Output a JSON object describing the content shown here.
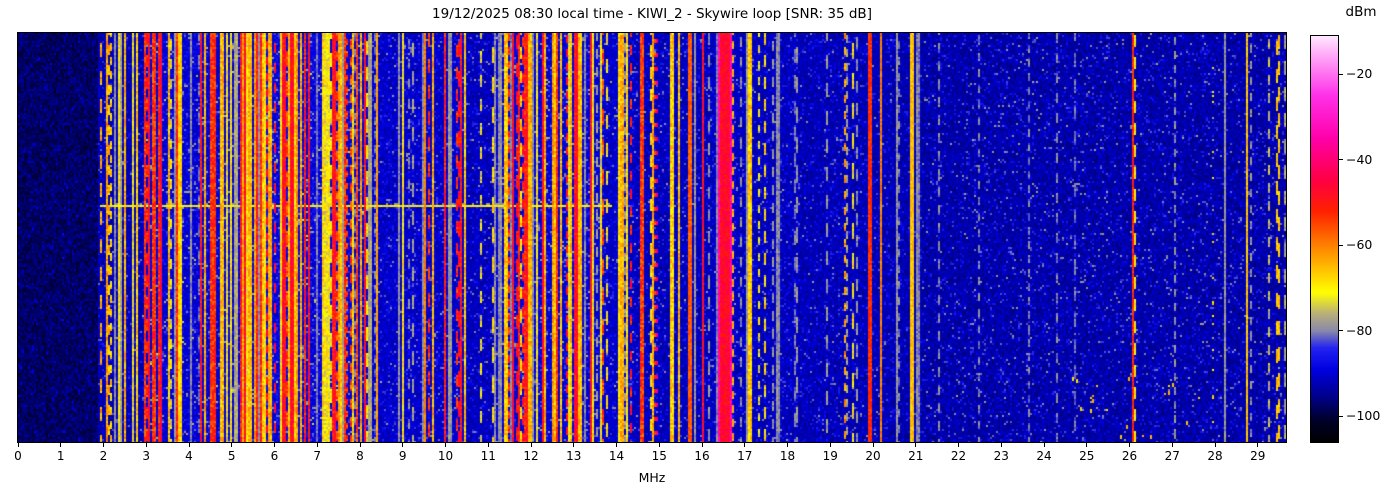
{
  "chart_data": {
    "type": "heatmap",
    "subtype": "rf-spectrogram-waterfall",
    "title": "19/12/2025 08:30 local time - KIWI_2 - Skywire loop [SNR: 35 dB]",
    "x_axis": {
      "label": "MHz",
      "min": 0,
      "max": 29.66,
      "ticks": [
        0,
        1,
        2,
        3,
        4,
        5,
        6,
        7,
        8,
        9,
        10,
        11,
        12,
        13,
        14,
        15,
        16,
        17,
        18,
        19,
        20,
        21,
        22,
        23,
        24,
        25,
        26,
        27,
        28,
        29
      ]
    },
    "y_axis": {
      "label": "",
      "ticks": []
    },
    "colorbar": {
      "label": "dBm",
      "ticks": [
        -20,
        -40,
        -60,
        -80,
        -100
      ],
      "range": [
        -106,
        -11
      ],
      "stops": [
        [
          -106,
          "#000000"
        ],
        [
          -101,
          "#000028"
        ],
        [
          -95,
          "#000090"
        ],
        [
          -89,
          "#0000e0"
        ],
        [
          -84,
          "#2222f0"
        ],
        [
          -80,
          "#8888aa"
        ],
        [
          -76,
          "#b8ae7a"
        ],
        [
          -71,
          "#ffff00"
        ],
        [
          -60,
          "#ff8000"
        ],
        [
          -52,
          "#ff2000"
        ],
        [
          -45,
          "#ff0040"
        ],
        [
          -35,
          "#ff00a8"
        ],
        [
          -25,
          "#ff30e8"
        ],
        [
          -15,
          "#ffb0f8"
        ],
        [
          -11,
          "#ffe8ff"
        ]
      ]
    },
    "bands": [
      {
        "from": 0.0,
        "to": 1.85,
        "floor": -98.0,
        "red": 0.0,
        "yel": 0.004,
        "gray": 0.012,
        "dash": 0.4,
        "tail": 8
      },
      {
        "from": 1.85,
        "to": 2.95,
        "floor": -92.5,
        "red": 0.05,
        "yel": 0.3,
        "gray": 0.12,
        "dash": 0.3,
        "tail": 12
      },
      {
        "from": 2.95,
        "to": 3.95,
        "floor": -90.0,
        "red": 0.32,
        "yel": 0.28,
        "gray": 0.1,
        "dash": 0.15,
        "tail": 14
      },
      {
        "from": 3.95,
        "to": 4.65,
        "floor": -90.0,
        "red": 0.24,
        "yel": 0.26,
        "gray": 0.12,
        "dash": 0.2,
        "tail": 14
      },
      {
        "from": 4.65,
        "to": 5.65,
        "floor": -90.0,
        "red": 0.3,
        "yel": 0.28,
        "gray": 0.1,
        "dash": 0.15,
        "tail": 14
      },
      {
        "from": 5.65,
        "to": 7.65,
        "floor": -89.0,
        "red": 0.33,
        "yel": 0.38,
        "gray": 0.08,
        "dash": 0.12,
        "tail": 14
      },
      {
        "from": 7.65,
        "to": 8.15,
        "floor": -90.0,
        "red": 0.28,
        "yel": 0.26,
        "gray": 0.1,
        "dash": 0.2,
        "tail": 14
      },
      {
        "from": 8.15,
        "to": 9.35,
        "floor": -91.0,
        "red": 0.02,
        "yel": 0.1,
        "gray": 0.1,
        "dash": 0.5,
        "tail": 12
      },
      {
        "from": 9.35,
        "to": 10.5,
        "floor": -91.0,
        "red": 0.1,
        "yel": 0.26,
        "gray": 0.1,
        "dash": 0.3,
        "tail": 12
      },
      {
        "from": 10.5,
        "to": 11.15,
        "floor": -92.0,
        "red": 0.03,
        "yel": 0.08,
        "gray": 0.1,
        "dash": 0.5,
        "tail": 12
      },
      {
        "from": 11.15,
        "to": 13.65,
        "floor": -90.0,
        "red": 0.27,
        "yel": 0.31,
        "gray": 0.09,
        "dash": 0.2,
        "tail": 14
      },
      {
        "from": 13.65,
        "to": 14.45,
        "floor": -91.0,
        "red": 0.12,
        "yel": 0.2,
        "gray": 0.12,
        "dash": 0.4,
        "tail": 12
      },
      {
        "from": 14.45,
        "to": 15.55,
        "floor": -92.0,
        "red": 0.02,
        "yel": 0.08,
        "gray": 0.12,
        "dash": 0.5,
        "tail": 12
      },
      {
        "from": 15.55,
        "to": 16.3,
        "floor": -92.0,
        "red": 0.015,
        "yel": 0.05,
        "gray": 0.08,
        "dash": 0.5,
        "tail": 12
      },
      {
        "from": 16.3,
        "to": 16.8,
        "floor": -91.0,
        "red": 0.04,
        "yel": 0.08,
        "gray": 0.08,
        "dash": 0.3,
        "tail": 12
      },
      {
        "from": 16.8,
        "to": 18.25,
        "floor": -92.0,
        "red": 0.008,
        "yel": 0.07,
        "gray": 0.15,
        "dash": 0.65,
        "tail": 12
      },
      {
        "from": 18.25,
        "to": 19.35,
        "floor": -92.5,
        "red": 0.008,
        "yel": 0.08,
        "gray": 0.1,
        "dash": 0.6,
        "tail": 12
      },
      {
        "from": 19.35,
        "to": 20.45,
        "floor": -92.5,
        "red": 0.012,
        "yel": 0.06,
        "gray": 0.12,
        "dash": 0.6,
        "tail": 12
      },
      {
        "from": 20.45,
        "to": 21.15,
        "floor": -93.0,
        "red": 0.0,
        "yel": 0.02,
        "gray": 0.05,
        "dash": 0.6,
        "tail": 10
      },
      {
        "from": 21.15,
        "to": 26.0,
        "floor": -93.5,
        "red": 0.0,
        "yel": 0.006,
        "gray": 0.025,
        "dash": 0.7,
        "tail": 14
      },
      {
        "from": 26.0,
        "to": 28.7,
        "floor": -93.5,
        "red": 0.0,
        "yel": 0.01,
        "gray": 0.03,
        "dash": 0.7,
        "tail": 14
      },
      {
        "from": 28.7,
        "to": 29.67,
        "floor": -93.5,
        "red": 0.0,
        "yel": 0.02,
        "gray": 0.08,
        "dash": 0.7,
        "tail": 14
      }
    ],
    "signals": [
      {
        "f": 8.4,
        "w": 0.03,
        "level": -63,
        "style": "solid"
      },
      {
        "f": 9.52,
        "w": 0.035,
        "level": -60,
        "style": "solid"
      },
      {
        "f": 14.92,
        "w": 0.03,
        "level": -54,
        "style": "dotted"
      },
      {
        "f": 15.72,
        "w": 0.035,
        "level": -57,
        "style": "solid"
      },
      {
        "f": 16.52,
        "w": 0.16,
        "level": -47,
        "style": "solid"
      },
      {
        "f": 16.72,
        "w": 0.03,
        "level": -64,
        "style": "dashed"
      },
      {
        "f": 19.93,
        "w": 0.028,
        "level": -66,
        "style": "solid"
      },
      {
        "f": 20.18,
        "w": 0.025,
        "level": -60,
        "style": "solid"
      },
      {
        "f": 20.91,
        "w": 0.038,
        "level": -66,
        "style": "solid"
      },
      {
        "f": 26.07,
        "w": 0.032,
        "level": -52,
        "style": "solid"
      },
      {
        "f": 26.13,
        "w": 0.022,
        "level": -70,
        "style": "dashed"
      },
      {
        "f": 27.95,
        "w": 0.025,
        "level": -68,
        "style": "sparse"
      },
      {
        "f": 28.73,
        "w": 0.022,
        "level": -79,
        "style": "solid"
      },
      {
        "f": 29.25,
        "w": 0.028,
        "level": -76,
        "style": "dashed"
      },
      {
        "f": 29.47,
        "w": 0.028,
        "level": -79,
        "style": "dashed"
      }
    ],
    "events": {
      "broadband_streak": {
        "from": 1.9,
        "to": 13.9,
        "row_frac": 0.42,
        "level": -71
      }
    },
    "sporadic_dots": {
      "f_from": 24.4,
      "f_to": 27.7,
      "row_frac_from": 0.84,
      "row_frac_to": 0.99,
      "count": 20,
      "level": -66
    }
  }
}
